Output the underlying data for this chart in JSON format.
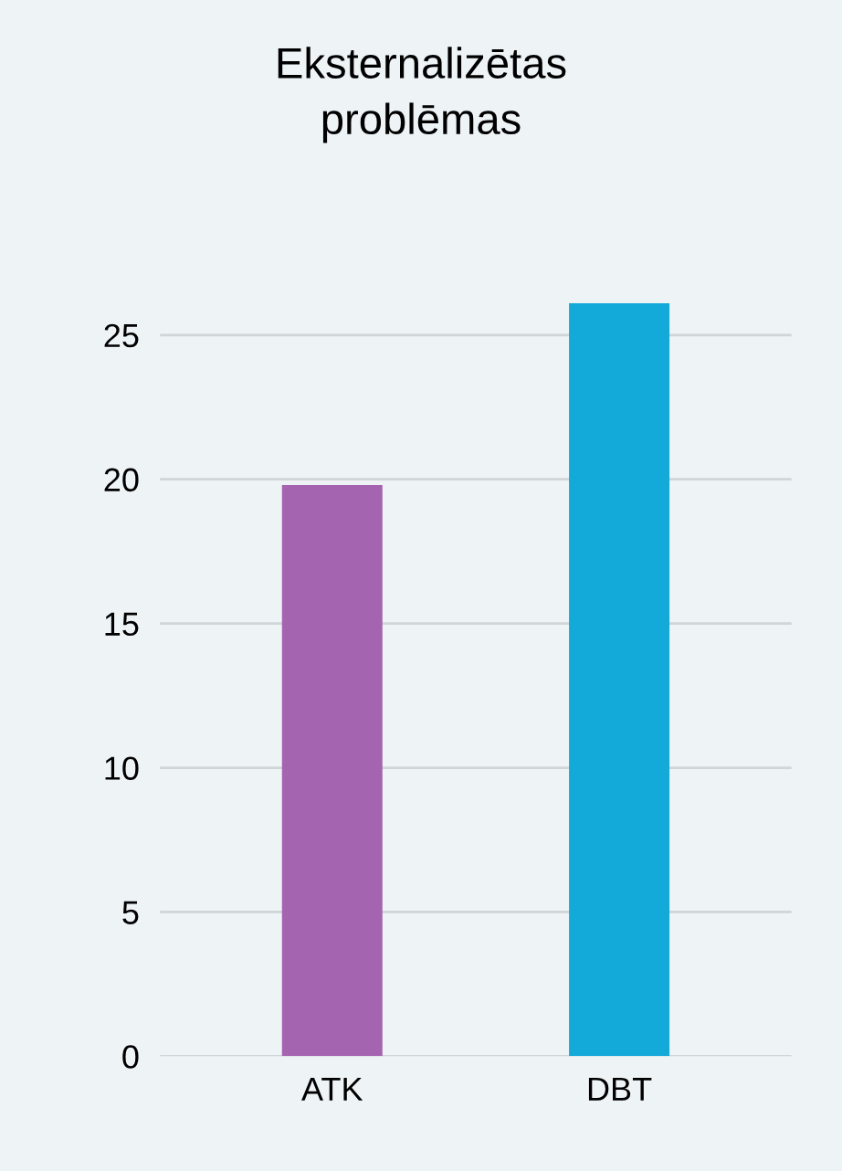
{
  "chart_data": {
    "type": "bar",
    "title": "Eksternalizētas\nproblēmas",
    "categories": [
      "ATK",
      "DBT"
    ],
    "values": [
      19.8,
      26.1
    ],
    "colors": [
      "#a564b0",
      "#13a9d8"
    ],
    "ylim": [
      0,
      26.1
    ],
    "yticks": [
      0,
      5,
      10,
      15,
      20,
      25
    ],
    "grid": "y",
    "legend": false
  }
}
